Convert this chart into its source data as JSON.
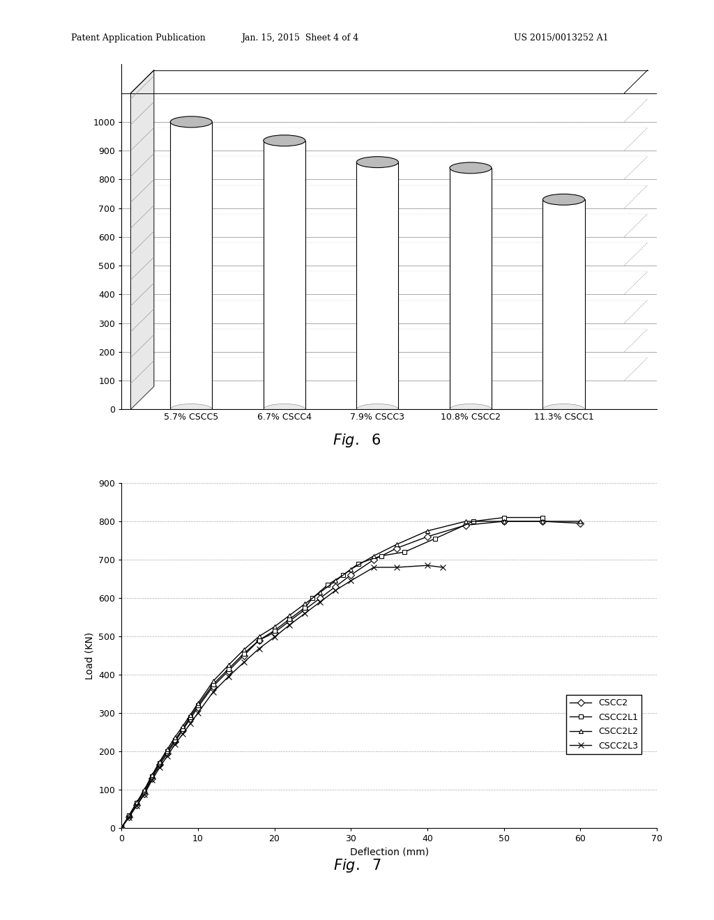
{
  "fig6": {
    "categories": [
      "5.7% CSCC5",
      "6.7% CSCC4",
      "7.9% CSCC3",
      "10.8% CSCC2",
      "11.3% CSCC1"
    ],
    "values": [
      1000,
      935,
      860,
      840,
      730
    ],
    "ylim": [
      0,
      1100
    ],
    "yticks": [
      0,
      100,
      200,
      300,
      400,
      500,
      600,
      700,
      800,
      900,
      1000
    ],
    "fig_label": "Fig.  6",
    "bar_width": 0.45
  },
  "fig7": {
    "xlabel": "Deflection (mm)",
    "ylabel": "Load (KN)",
    "xlim": [
      0,
      70
    ],
    "ylim": [
      0,
      900
    ],
    "xticks": [
      0,
      10,
      20,
      30,
      40,
      50,
      60,
      70
    ],
    "yticks": [
      0,
      100,
      200,
      300,
      400,
      500,
      600,
      700,
      800,
      900
    ],
    "fig_label": "Fig.  7",
    "CSCC2_x": [
      0,
      1,
      2,
      3,
      4,
      5,
      6,
      7,
      8,
      9,
      10,
      12,
      14,
      16,
      18,
      20,
      22,
      24,
      26,
      28,
      30,
      33,
      36,
      40,
      45,
      50,
      55,
      60
    ],
    "CSCC2_y": [
      0,
      30,
      60,
      90,
      130,
      165,
      195,
      225,
      255,
      285,
      315,
      370,
      410,
      450,
      490,
      510,
      540,
      570,
      600,
      630,
      660,
      700,
      730,
      760,
      790,
      800,
      800,
      795
    ],
    "CSCC2L1_x": [
      0,
      1,
      2,
      3,
      4,
      5,
      6,
      7,
      8,
      9,
      10,
      12,
      14,
      16,
      18,
      20,
      22,
      24,
      25,
      27,
      29,
      31,
      34,
      37,
      41,
      46,
      50,
      55
    ],
    "CSCC2L1_y": [
      0,
      32,
      65,
      95,
      135,
      170,
      200,
      230,
      258,
      290,
      320,
      375,
      415,
      455,
      490,
      515,
      545,
      575,
      600,
      635,
      660,
      690,
      710,
      720,
      755,
      800,
      810,
      810
    ],
    "CSCC2L2_x": [
      0,
      1,
      2,
      3,
      4,
      5,
      6,
      7,
      8,
      9,
      10,
      12,
      14,
      16,
      18,
      20,
      22,
      24,
      26,
      28,
      30,
      33,
      36,
      40,
      45,
      50,
      55,
      60
    ],
    "CSCC2L2_y": [
      0,
      33,
      67,
      100,
      138,
      173,
      205,
      237,
      265,
      295,
      325,
      383,
      425,
      465,
      500,
      525,
      555,
      585,
      615,
      645,
      675,
      710,
      740,
      775,
      800,
      800,
      800,
      800
    ],
    "CSCC2L3_x": [
      0,
      1,
      2,
      3,
      4,
      5,
      6,
      7,
      8,
      9,
      10,
      12,
      14,
      16,
      18,
      20,
      22,
      24,
      26,
      28,
      30,
      33,
      36,
      40,
      42
    ],
    "CSCC2L3_y": [
      0,
      28,
      58,
      88,
      125,
      158,
      188,
      218,
      245,
      272,
      300,
      355,
      395,
      432,
      468,
      498,
      530,
      560,
      590,
      620,
      645,
      680,
      680,
      685,
      680
    ]
  },
  "header_left": "Patent Application Publication",
  "header_mid": "Jan. 15, 2015  Sheet 4 of 4",
  "header_right": "US 2015/0013252 A1",
  "bg_color": "#ffffff"
}
